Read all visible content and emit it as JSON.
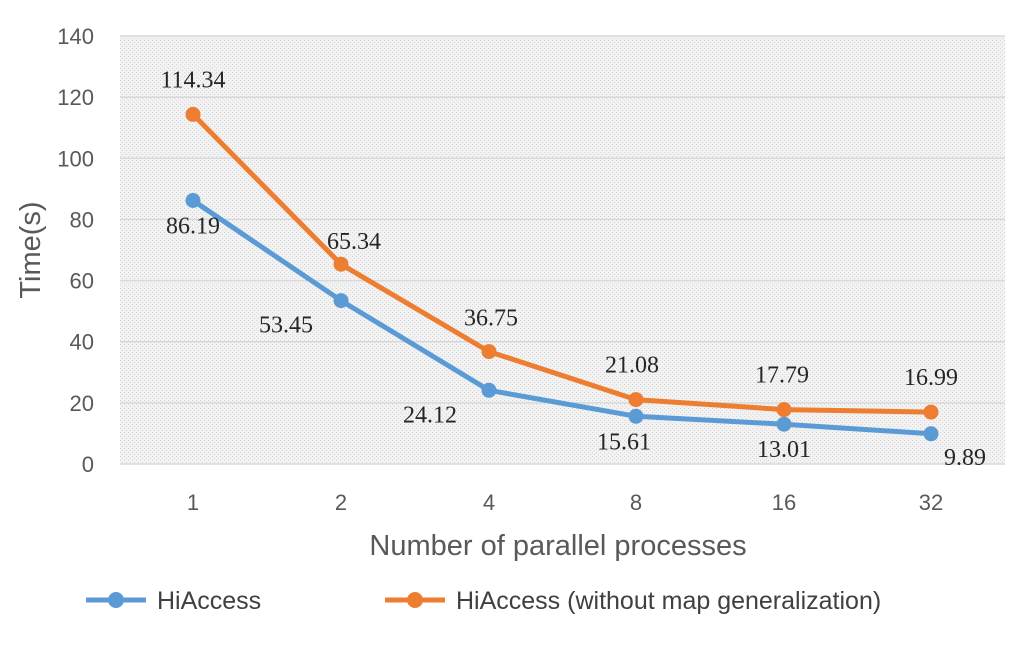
{
  "chart_data": {
    "type": "line",
    "categories": [
      "1",
      "2",
      "4",
      "8",
      "16",
      "32"
    ],
    "series": [
      {
        "name": "HiAccess",
        "values": [
          86.19,
          53.45,
          24.12,
          15.61,
          13.01,
          9.89
        ],
        "labels": [
          "86.19",
          "53.45",
          "24.12",
          "15.61",
          "13.01",
          "9.89"
        ],
        "color": "#5B9BD5"
      },
      {
        "name": "HiAccess (without map generalization)",
        "values": [
          114.34,
          65.34,
          36.75,
          21.08,
          17.79,
          16.99
        ],
        "labels": [
          "114.34",
          "65.34",
          "36.75",
          "21.08",
          "17.79",
          "16.99"
        ],
        "color": "#ED7D31"
      }
    ],
    "xlabel": "Number of parallel processes",
    "ylabel": "Time(s)",
    "ylim": [
      0,
      140
    ],
    "yticks": [
      "0",
      "20",
      "40",
      "60",
      "80",
      "100",
      "120",
      "140"
    ],
    "grid": true,
    "legend_position": "bottom"
  }
}
